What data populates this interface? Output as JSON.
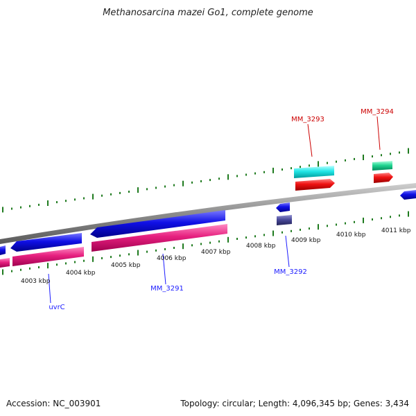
{
  "map": {
    "title": "Methanosarcina mazei Go1, complete genome",
    "accession_text": "Accession: NC_003901",
    "summary_text": "Topology: circular; Length: 4,096,345 bp; Genes: 3,434"
  },
  "colors": {
    "backbone": "#8c8c8c",
    "ticks": "#1e7a1e",
    "label_blue": "#1a1aff",
    "label_red": "#cc0000",
    "gene_blue": "#1010e6",
    "gene_magenta": "#e6207f",
    "gene_cyan": "#22e6e6",
    "gene_red": "#ee1111",
    "gene_green": "#22d692",
    "gene_slate": "#4a4a9a"
  },
  "scale_labels": [
    {
      "text": "4003 kbp"
    },
    {
      "text": "4004 kbp"
    },
    {
      "text": "4005 kbp"
    },
    {
      "text": "4006 kbp"
    },
    {
      "text": "4007 kbp"
    },
    {
      "text": "4008 kbp"
    },
    {
      "text": "4009 kbp"
    },
    {
      "text": "4010 kbp"
    },
    {
      "text": "4011 kbp"
    }
  ],
  "gene_labels": [
    {
      "text": "uvrC",
      "color": "label_blue"
    },
    {
      "text": "MM_3291",
      "color": "label_blue"
    },
    {
      "text": "MM_3292",
      "color": "label_blue"
    },
    {
      "text": "MM_3293",
      "color": "label_red"
    },
    {
      "text": "MM_3294",
      "color": "label_red"
    }
  ]
}
